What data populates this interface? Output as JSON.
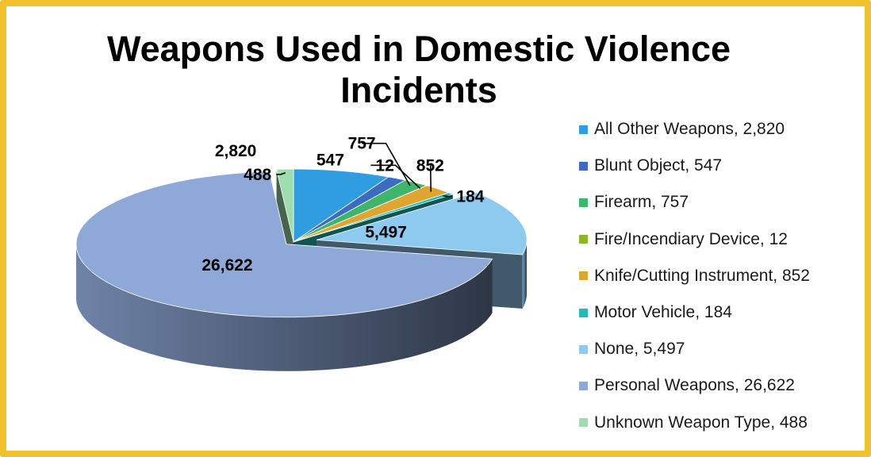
{
  "chart_data": {
    "type": "pie",
    "title": "Weapons Used in Domestic Violence Incidents",
    "categories": [
      "All Other Weapons",
      "Blunt Object",
      "Firearm",
      "Fire/Incendiary Device",
      "Knife/Cutting Instrument",
      "Motor Vehicle",
      "None",
      "Personal Weapons",
      "Unknown Weapon Type"
    ],
    "values": [
      2820,
      547,
      757,
      12,
      852,
      184,
      5497,
      26622,
      488
    ],
    "data_labels": [
      "2,820",
      "547",
      "757",
      "12",
      "852",
      "184",
      "5,497",
      "26,622",
      "488"
    ],
    "legend_entries": [
      "All Other Weapons, 2,820",
      "Blunt Object, 547",
      "Firearm, 757",
      "Fire/Incendiary Device, 12",
      "Knife/Cutting Instrument, 852",
      "Motor Vehicle, 184",
      "None, 5,497",
      "Personal Weapons, 26,622",
      "Unknown Weapon Type, 488"
    ],
    "colors": [
      "#2f9de0",
      "#3c6cc0",
      "#3fb56c",
      "#8db52c",
      "#dfa530",
      "#1fbcb8",
      "#8ec9f0",
      "#8ea8d8",
      "#9fdcae"
    ],
    "exploded": [
      "None",
      "Personal Weapons"
    ],
    "legend_position": "right",
    "style": "3d-exploded-pie"
  },
  "frame_color": "#f2c12e"
}
